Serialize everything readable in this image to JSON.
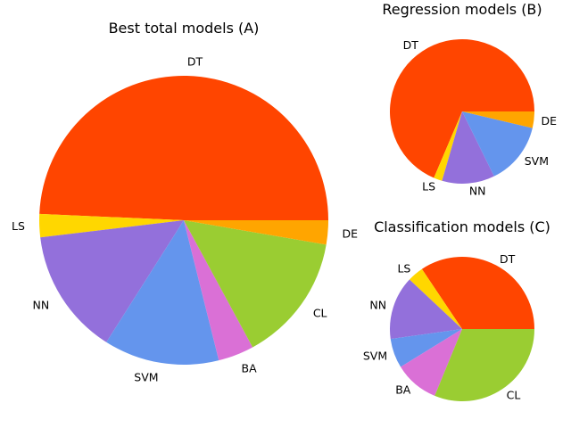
{
  "chart_data": [
    {
      "type": "pie",
      "title": "Best total models (A)",
      "slices": [
        {
          "label": "DE",
          "value": 2.7,
          "color": "#FFA500"
        },
        {
          "label": "CL",
          "value": 14.4,
          "color": "#9ACD32"
        },
        {
          "label": "BA",
          "value": 4.0,
          "color": "#DA70D6"
        },
        {
          "label": "SVM",
          "value": 12.9,
          "color": "#6495ED"
        },
        {
          "label": "NN",
          "value": 14.1,
          "color": "#9370DB"
        },
        {
          "label": "LS",
          "value": 2.6,
          "color": "#FFD700"
        },
        {
          "label": "DT",
          "value": 49.3,
          "color": "#FF4500"
        }
      ]
    },
    {
      "type": "pie",
      "title": "Regression models (B)",
      "slices": [
        {
          "label": "DE",
          "value": 3.7,
          "color": "#FFA500"
        },
        {
          "label": "SVM",
          "value": 14.0,
          "color": "#6495ED"
        },
        {
          "label": "NN",
          "value": 11.8,
          "color": "#9370DB"
        },
        {
          "label": "LS",
          "value": 1.9,
          "color": "#FFD700"
        },
        {
          "label": "DT",
          "value": 68.6,
          "color": "#FF4500"
        }
      ]
    },
    {
      "type": "pie",
      "title": "Classification models (C)",
      "slices": [
        {
          "label": "CL",
          "value": 31.2,
          "color": "#9ACD32"
        },
        {
          "label": "BA",
          "value": 10.0,
          "color": "#DA70D6"
        },
        {
          "label": "SVM",
          "value": 6.6,
          "color": "#6495ED"
        },
        {
          "label": "NN",
          "value": 14.2,
          "color": "#9370DB"
        },
        {
          "label": "LS",
          "value": 3.6,
          "color": "#FFD700"
        },
        {
          "label": "DT",
          "value": 34.4,
          "color": "#FF4500"
        }
      ]
    }
  ]
}
